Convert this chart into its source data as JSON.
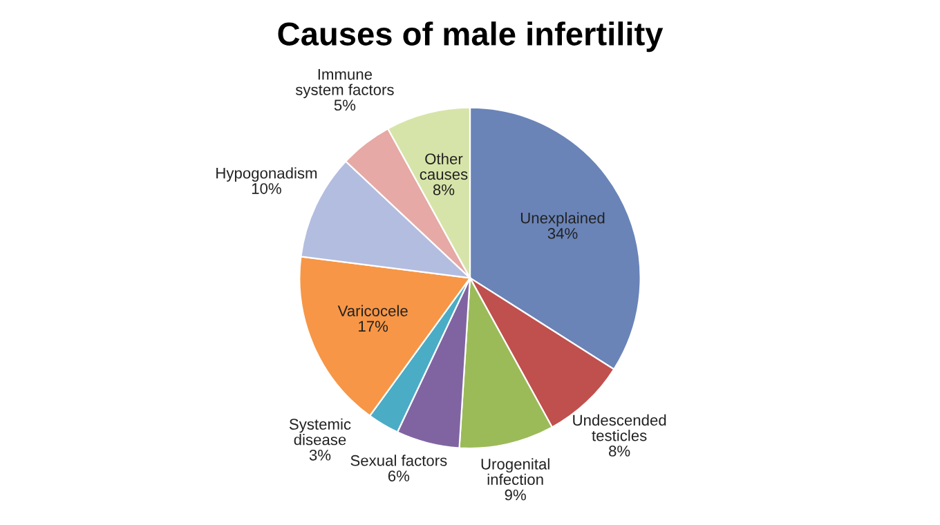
{
  "chart_data": {
    "type": "pie",
    "title": "Causes of male infertility",
    "categories": [
      "Unexplained",
      "Undescended\ntesticles",
      "Urogenital\ninfection",
      "Sexual factors",
      "Systemic\ndisease",
      "Varicocele",
      "Hypogonadism",
      "Immune\nsystem factors",
      "Other\ncauses"
    ],
    "values": [
      34,
      8,
      9,
      6,
      3,
      17,
      10,
      5,
      8
    ],
    "value_labels": [
      "34%",
      "8%",
      "9%",
      "6%",
      "3%",
      "17%",
      "10%",
      "5%",
      "8%"
    ],
    "colors": [
      "#6a84b8",
      "#c0504d",
      "#9bbb59",
      "#8064a2",
      "#4bacc6",
      "#f79646",
      "#b3bde0",
      "#e6a9a5",
      "#d7e4a9"
    ],
    "legend": false
  }
}
